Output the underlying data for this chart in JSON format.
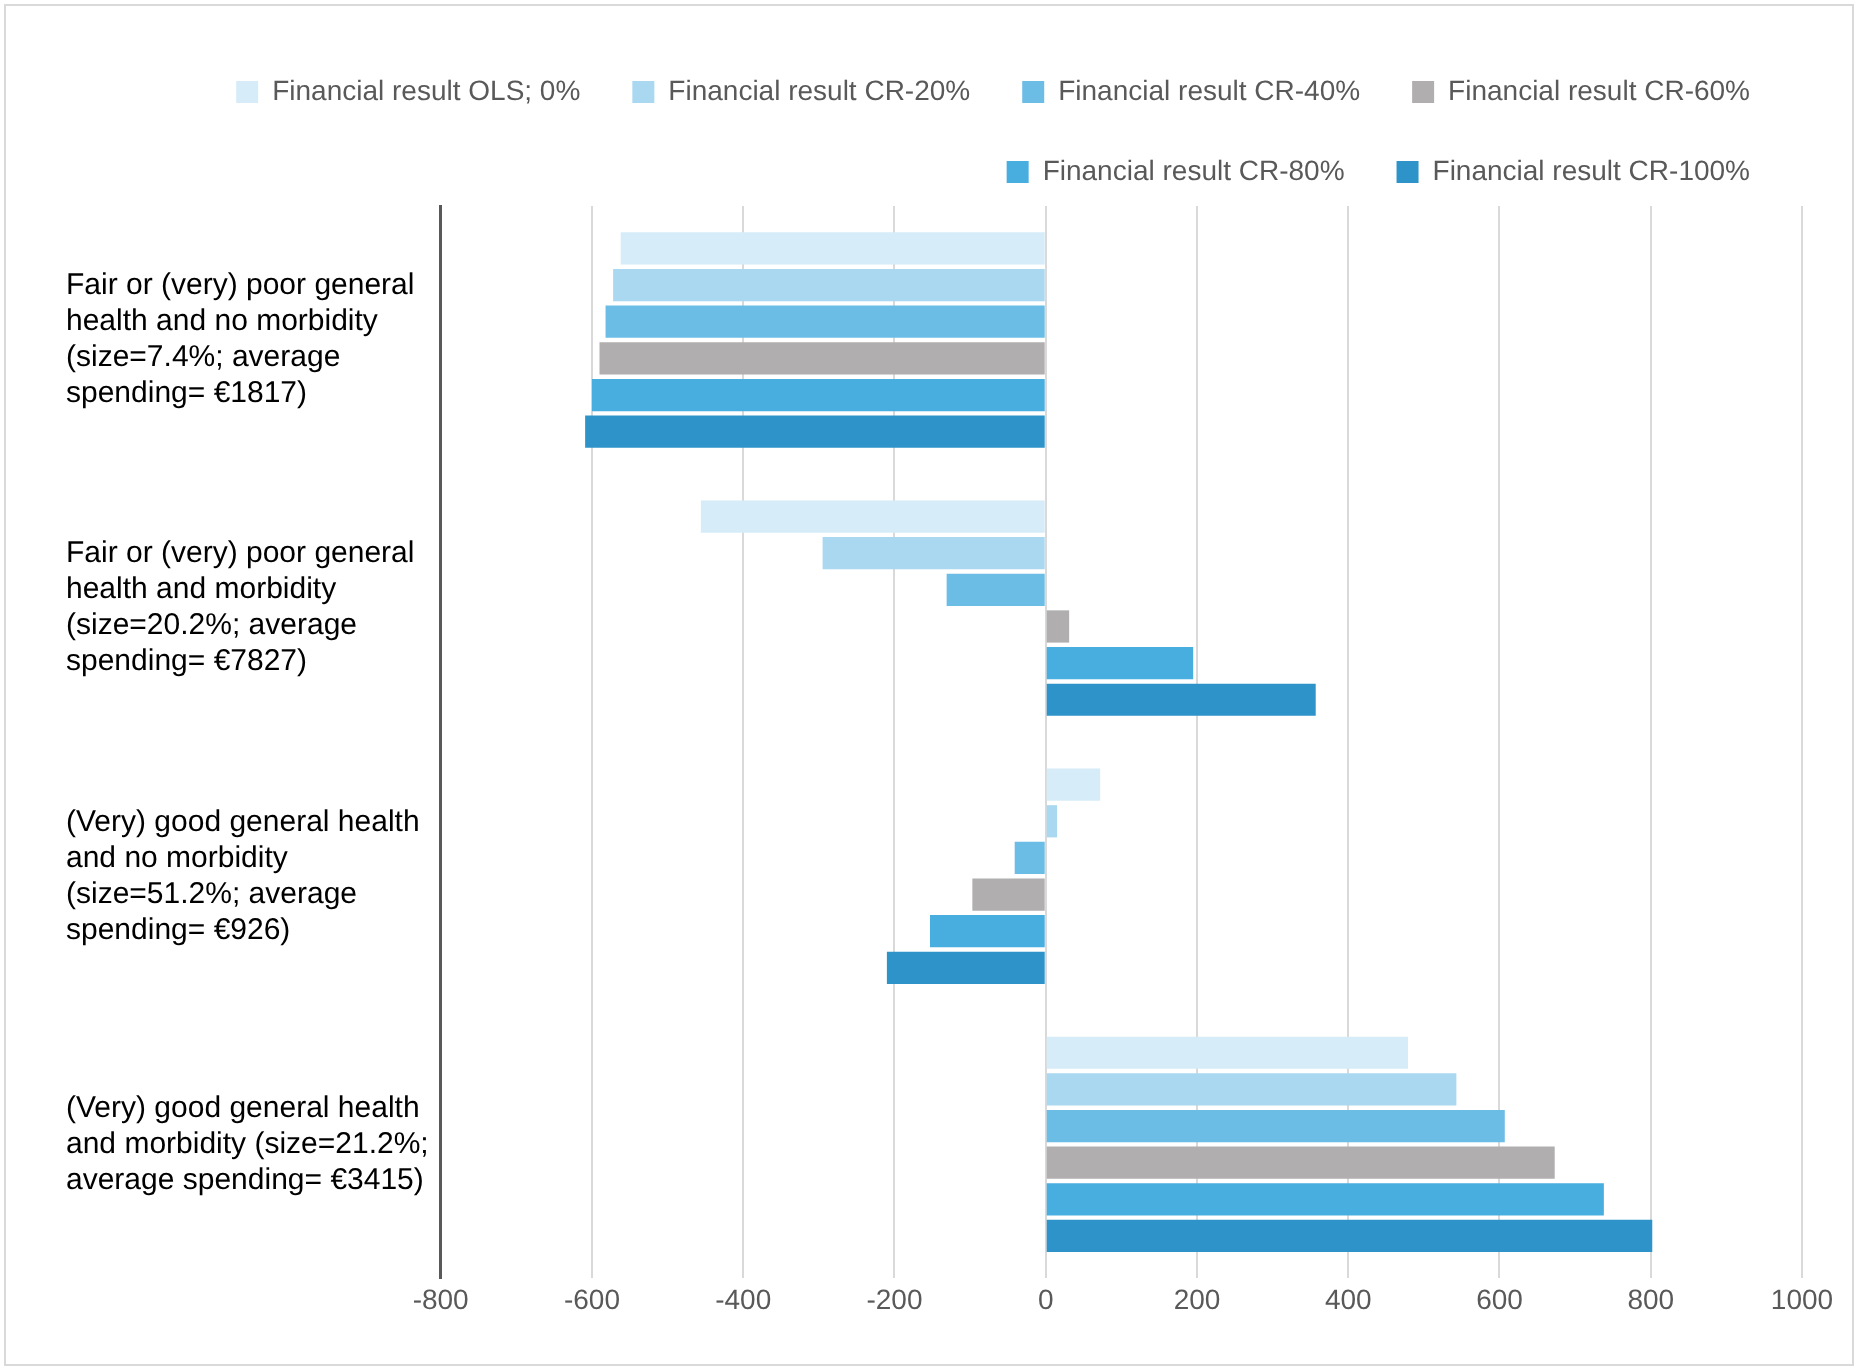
{
  "chart_data": {
    "type": "bar",
    "orientation": "horizontal",
    "categories": [
      "Fair or (very) poor general health and no morbidity (size=7.4%; average spending= €1817)",
      "Fair or (very) poor general health and morbidity (size=20.2%; average spending= €7827)",
      "(Very) good general health and no morbidity (size=51.2%; average spending= €926)",
      "(Very) good general health and morbidity (size=21.2%; average spending= €3415)"
    ],
    "series": [
      {
        "name": "Financial result OLS; 0%",
        "color": "#d6ecf8",
        "values": [
          -562,
          -456,
          72,
          479
        ]
      },
      {
        "name": "Financial result CR-20%",
        "color": "#a9d8f0",
        "values": [
          -572,
          -295,
          15,
          543
        ]
      },
      {
        "name": "Financial result CR-40%",
        "color": "#6cbde6",
        "values": [
          -582,
          -131,
          -41,
          607
        ]
      },
      {
        "name": "Financial result CR-60%",
        "color": "#b0aeae",
        "values": [
          -590,
          31,
          -97,
          673
        ]
      },
      {
        "name": "Financial result CR-80%",
        "color": "#48addf",
        "values": [
          -600,
          195,
          -153,
          738
        ]
      },
      {
        "name": "Financial result CR-100%",
        "color": "#2e93c8",
        "values": [
          -609,
          357,
          -210,
          802
        ]
      }
    ],
    "xlim": [
      -800,
      1000
    ],
    "xticks": [
      -800,
      -600,
      -400,
      -200,
      0,
      200,
      400,
      600,
      800,
      1000
    ],
    "grid": "x",
    "legend": "top"
  }
}
